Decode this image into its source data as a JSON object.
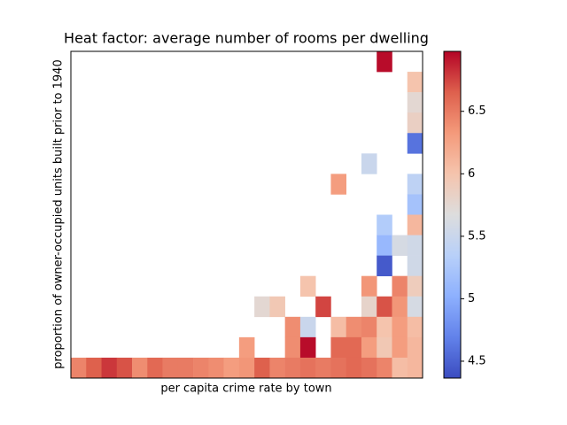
{
  "chart_data": {
    "type": "heatmap",
    "title": "Heat factor: average number of rooms per dwelling",
    "xlabel": "per capita crime rate by town",
    "ylabel": "proportion of owner-occupied units built prior to 1940",
    "colormap": "coolwarm",
    "clim": [
      4.365,
      6.98
    ],
    "cbar_ticks": [
      4.5,
      5.0,
      5.5,
      6.0,
      6.5
    ],
    "z": [
      [
        null,
        null,
        null,
        null,
        null,
        null,
        null,
        null,
        null,
        null,
        null,
        null,
        null,
        null,
        null,
        null,
        null,
        null,
        null,
        null,
        6.95,
        null,
        null
      ],
      [
        null,
        null,
        null,
        null,
        null,
        null,
        null,
        null,
        null,
        null,
        null,
        null,
        null,
        null,
        null,
        null,
        null,
        null,
        null,
        null,
        null,
        null,
        6.0
      ],
      [
        null,
        null,
        null,
        null,
        null,
        null,
        null,
        null,
        null,
        null,
        null,
        null,
        null,
        null,
        null,
        null,
        null,
        null,
        null,
        null,
        null,
        null,
        5.75
      ],
      [
        null,
        null,
        null,
        null,
        null,
        null,
        null,
        null,
        null,
        null,
        null,
        null,
        null,
        null,
        null,
        null,
        null,
        null,
        null,
        null,
        null,
        null,
        5.85
      ],
      [
        null,
        null,
        null,
        null,
        null,
        null,
        null,
        null,
        null,
        null,
        null,
        null,
        null,
        null,
        null,
        null,
        null,
        null,
        null,
        null,
        null,
        null,
        4.6
      ],
      [
        null,
        null,
        null,
        null,
        null,
        null,
        null,
        null,
        null,
        null,
        null,
        null,
        null,
        null,
        null,
        null,
        null,
        null,
        null,
        5.5,
        null,
        null,
        null
      ],
      [
        null,
        null,
        null,
        null,
        null,
        null,
        null,
        null,
        null,
        null,
        null,
        null,
        null,
        null,
        null,
        null,
        null,
        6.3,
        null,
        null,
        null,
        null,
        5.4
      ],
      [
        null,
        null,
        null,
        null,
        null,
        null,
        null,
        null,
        null,
        null,
        null,
        null,
        null,
        null,
        null,
        null,
        null,
        null,
        null,
        null,
        null,
        null,
        5.2
      ],
      [
        null,
        null,
        null,
        null,
        null,
        null,
        null,
        null,
        null,
        null,
        null,
        null,
        null,
        null,
        null,
        null,
        null,
        null,
        null,
        null,
        5.3,
        null,
        6.1
      ],
      [
        null,
        null,
        null,
        null,
        null,
        null,
        null,
        null,
        null,
        null,
        null,
        null,
        null,
        null,
        null,
        null,
        null,
        null,
        null,
        null,
        5.1,
        5.6,
        5.55
      ],
      [
        null,
        null,
        null,
        null,
        null,
        null,
        null,
        null,
        null,
        null,
        null,
        null,
        null,
        null,
        null,
        null,
        null,
        null,
        null,
        null,
        4.45,
        null,
        5.55
      ],
      [
        null,
        null,
        null,
        null,
        null,
        null,
        null,
        null,
        null,
        null,
        null,
        null,
        null,
        null,
        null,
        6.0,
        null,
        null,
        null,
        6.35,
        null,
        6.45,
        5.9
      ],
      [
        null,
        null,
        null,
        null,
        null,
        null,
        null,
        null,
        null,
        null,
        null,
        null,
        5.75,
        5.95,
        null,
        null,
        6.75,
        null,
        null,
        5.8,
        6.7,
        6.35,
        5.6
      ],
      [
        null,
        null,
        null,
        null,
        null,
        null,
        null,
        null,
        null,
        null,
        null,
        null,
        null,
        null,
        6.4,
        5.5,
        null,
        6.05,
        6.4,
        6.45,
        6.0,
        6.3,
        6.05
      ],
      [
        null,
        null,
        null,
        null,
        null,
        null,
        null,
        null,
        null,
        null,
        null,
        6.3,
        null,
        null,
        6.4,
        6.95,
        null,
        6.6,
        6.6,
        6.3,
        5.95,
        6.3,
        6.1
      ],
      [
        6.45,
        6.65,
        6.8,
        6.7,
        6.4,
        6.6,
        6.5,
        6.5,
        6.45,
        6.4,
        6.3,
        6.35,
        6.65,
        6.45,
        6.5,
        6.55,
        6.5,
        6.55,
        6.6,
        6.55,
        6.45,
        6.05,
        6.1
      ]
    ]
  }
}
